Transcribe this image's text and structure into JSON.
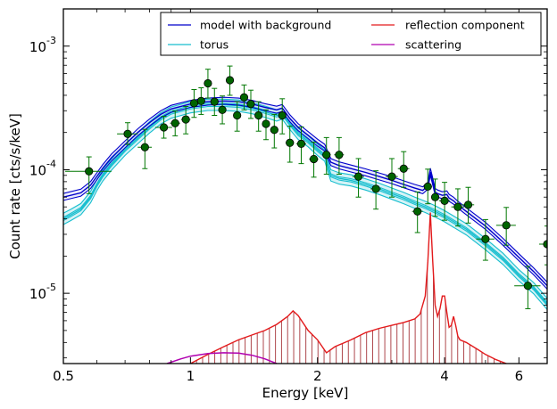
{
  "chart_data": {
    "type": "scatter",
    "xlabel": "Energy [keV]",
    "ylabel": "Count rate [cts/s/keV]",
    "xscale": "log",
    "yscale": "log",
    "xlim": [
      0.5,
      7.0
    ],
    "ylim": [
      2.7e-06,
      0.002
    ],
    "x_ticks": [
      {
        "value": 0.5,
        "label": "0.5"
      },
      {
        "value": 1,
        "label": "1"
      },
      {
        "value": 2,
        "label": "2"
      },
      {
        "value": 4,
        "label": "4"
      },
      {
        "value": 6,
        "label": "6"
      }
    ],
    "y_ticks": [
      {
        "value": 1e-05,
        "base": "10",
        "exp": "-5"
      },
      {
        "value": 0.0001,
        "base": "10",
        "exp": "-4"
      },
      {
        "value": 0.001,
        "base": "10",
        "exp": "-3"
      }
    ],
    "legend_position": "top-right",
    "legend": [
      {
        "label": "model with background",
        "color": "#0000cc"
      },
      {
        "label": "reflection component",
        "color": "#e31a1c"
      },
      {
        "label": "torus",
        "color": "#17becf"
      },
      {
        "label": "scattering",
        "color": "#b000b0"
      }
    ],
    "data_points": {
      "name": "data",
      "color": "#007700",
      "marker_color": "#006400",
      "points": [
        {
          "x": 0.575,
          "y": 9.7e-05,
          "xerr": [
            0.07,
            0.075
          ],
          "yerr": [
            3.3e-05,
            3e-05
          ]
        },
        {
          "x": 0.71,
          "y": 0.000195,
          "xerr": [
            0.04,
            0.04
          ],
          "yerr": [
            3.5e-05,
            4.5e-05
          ]
        },
        {
          "x": 0.78,
          "y": 0.000152,
          "xerr": [
            0.03,
            0.03
          ],
          "yerr": [
            5e-05,
            6e-05
          ]
        },
        {
          "x": 0.865,
          "y": 0.00022,
          "xerr": [
            0.04,
            0.04
          ],
          "yerr": [
            4e-05,
            5e-05
          ]
        },
        {
          "x": 0.92,
          "y": 0.000238,
          "xerr": [
            0.025,
            0.025
          ],
          "yerr": [
            5e-05,
            6e-05
          ]
        },
        {
          "x": 0.975,
          "y": 0.000255,
          "xerr": [
            0.025,
            0.025
          ],
          "yerr": [
            6e-05,
            7e-05
          ]
        },
        {
          "x": 1.02,
          "y": 0.000345,
          "xerr": [
            0.02,
            0.02
          ],
          "yerr": [
            8e-05,
            0.0001
          ]
        },
        {
          "x": 1.06,
          "y": 0.00036,
          "xerr": [
            0.02,
            0.02
          ],
          "yerr": [
            8e-05,
            0.0001
          ]
        },
        {
          "x": 1.1,
          "y": 0.0005,
          "xerr": [
            0.02,
            0.02
          ],
          "yerr": [
            0.00012,
            0.00015
          ]
        },
        {
          "x": 1.14,
          "y": 0.000355,
          "xerr": [
            0.02,
            0.02
          ],
          "yerr": [
            8e-05,
            0.0001
          ]
        },
        {
          "x": 1.19,
          "y": 0.000305,
          "xerr": [
            0.02,
            0.02
          ],
          "yerr": [
            7e-05,
            9e-05
          ]
        },
        {
          "x": 1.24,
          "y": 0.00053,
          "xerr": [
            0.025,
            0.025
          ],
          "yerr": [
            0.00013,
            0.00016
          ]
        },
        {
          "x": 1.29,
          "y": 0.000275,
          "xerr": [
            0.025,
            0.025
          ],
          "yerr": [
            7e-05,
            8e-05
          ]
        },
        {
          "x": 1.34,
          "y": 0.000385,
          "xerr": [
            0.025,
            0.025
          ],
          "yerr": [
            8e-05,
            0.0001
          ]
        },
        {
          "x": 1.39,
          "y": 0.00034,
          "xerr": [
            0.025,
            0.025
          ],
          "yerr": [
            8e-05,
            0.0001
          ]
        },
        {
          "x": 1.45,
          "y": 0.000275,
          "xerr": [
            0.03,
            0.03
          ],
          "yerr": [
            7e-05,
            8e-05
          ]
        },
        {
          "x": 1.51,
          "y": 0.000235,
          "xerr": [
            0.03,
            0.03
          ],
          "yerr": [
            6e-05,
            7e-05
          ]
        },
        {
          "x": 1.58,
          "y": 0.00021,
          "xerr": [
            0.035,
            0.035
          ],
          "yerr": [
            6e-05,
            7e-05
          ]
        },
        {
          "x": 1.65,
          "y": 0.000275,
          "xerr": [
            0.035,
            0.035
          ],
          "yerr": [
            8e-05,
            0.0001
          ]
        },
        {
          "x": 1.72,
          "y": 0.000165,
          "xerr": [
            0.04,
            0.04
          ],
          "yerr": [
            5e-05,
            6e-05
          ]
        },
        {
          "x": 1.83,
          "y": 0.000162,
          "xerr": [
            0.05,
            0.05
          ],
          "yerr": [
            5e-05,
            6e-05
          ]
        },
        {
          "x": 1.96,
          "y": 0.000122,
          "xerr": [
            0.05,
            0.05
          ],
          "yerr": [
            3.5e-05,
            4.5e-05
          ]
        },
        {
          "x": 2.1,
          "y": 0.000132,
          "xerr": [
            0.05,
            0.05
          ],
          "yerr": [
            4e-05,
            5e-05
          ]
        },
        {
          "x": 2.25,
          "y": 0.000132,
          "xerr": [
            0.06,
            0.06
          ],
          "yerr": [
            4e-05,
            5e-05
          ]
        },
        {
          "x": 2.5,
          "y": 8.8e-05,
          "xerr": [
            0.08,
            0.08
          ],
          "yerr": [
            2.8e-05,
            3.5e-05
          ]
        },
        {
          "x": 2.75,
          "y": 7e-05,
          "xerr": [
            0.08,
            0.08
          ],
          "yerr": [
            2.2e-05,
            2.8e-05
          ]
        },
        {
          "x": 3.0,
          "y": 8.8e-05,
          "xerr": [
            0.1,
            0.1
          ],
          "yerr": [
            2.8e-05,
            3.5e-05
          ]
        },
        {
          "x": 3.2,
          "y": 0.000102,
          "xerr": [
            0.1,
            0.1
          ],
          "yerr": [
            3e-05,
            3.8e-05
          ]
        },
        {
          "x": 3.45,
          "y": 4.6e-05,
          "xerr": [
            0.1,
            0.1
          ],
          "yerr": [
            1.5e-05,
            2e-05
          ]
        },
        {
          "x": 3.65,
          "y": 7.3e-05,
          "xerr": [
            0.08,
            0.08
          ],
          "yerr": [
            2e-05,
            2.8e-05
          ]
        },
        {
          "x": 3.8,
          "y": 6e-05,
          "xerr": [
            0.07,
            0.07
          ],
          "yerr": [
            1.8e-05,
            2.4e-05
          ]
        },
        {
          "x": 4.0,
          "y": 5.6e-05,
          "xerr": [
            0.12,
            0.12
          ],
          "yerr": [
            1.7e-05,
            2.3e-05
          ]
        },
        {
          "x": 4.3,
          "y": 5e-05,
          "xerr": [
            0.15,
            0.15
          ],
          "yerr": [
            1.5e-05,
            2e-05
          ]
        },
        {
          "x": 4.55,
          "y": 5.2e-05,
          "xerr": [
            0.15,
            0.15
          ],
          "yerr": [
            1.5e-05,
            2e-05
          ]
        },
        {
          "x": 5.0,
          "y": 2.75e-05,
          "xerr": [
            0.25,
            0.25
          ],
          "yerr": [
            9e-06,
            1.2e-05
          ]
        },
        {
          "x": 5.6,
          "y": 3.55e-05,
          "xerr": [
            0.3,
            0.3
          ],
          "yerr": [
            1.1e-05,
            1.4e-05
          ]
        },
        {
          "x": 6.3,
          "y": 1.15e-05,
          "xerr": [
            0.45,
            0.45
          ],
          "yerr": [
            4e-06,
            5e-06
          ]
        },
        {
          "x": 7.0,
          "y": 2.5e-05,
          "xerr": [
            0.3,
            0.3
          ],
          "yerr": [
            8e-06,
            1e-05
          ]
        }
      ]
    },
    "series": [
      {
        "name": "model with background",
        "color": "#0000cc",
        "band": [
          0.94,
          1.07
        ],
        "x": [
          0.5,
          0.55,
          0.58,
          0.6,
          0.62,
          0.65,
          0.7,
          0.75,
          0.8,
          0.85,
          0.9,
          1.0,
          1.1,
          1.2,
          1.3,
          1.4,
          1.5,
          1.6,
          1.65,
          1.72,
          1.8,
          1.9,
          2.0,
          2.08,
          2.15,
          2.25,
          2.4,
          2.6,
          2.8,
          3.0,
          3.2,
          3.4,
          3.55,
          3.65,
          3.7,
          3.75,
          3.8,
          3.85,
          3.95,
          4.05,
          4.1,
          4.2,
          4.3,
          4.5,
          5.0,
          5.5,
          6.0,
          6.5,
          7.0
        ],
        "y": [
          6e-05,
          6.5e-05,
          7.5e-05,
          8.8e-05,
          0.000103,
          0.000125,
          0.00016,
          0.0002,
          0.00024,
          0.00028,
          0.00031,
          0.00034,
          0.000355,
          0.00036,
          0.000355,
          0.00034,
          0.00032,
          0.000305,
          0.000315,
          0.00026,
          0.00022,
          0.00019,
          0.000165,
          0.00015,
          0.000115,
          0.000108,
          0.000102,
          9.5e-05,
          8.8e-05,
          8.2e-05,
          7.6e-05,
          7.1e-05,
          6.8e-05,
          7.4e-05,
          9.6e-05,
          8e-05,
          6.6e-05,
          6.4e-05,
          6.2e-05,
          6.3e-05,
          5.9e-05,
          5.6e-05,
          5.2e-05,
          4.6e-05,
          3.5e-05,
          2.6e-05,
          1.95e-05,
          1.5e-05,
          1.15e-05
        ]
      },
      {
        "name": "torus",
        "color": "#17becf",
        "band": [
          0.9,
          1.11
        ],
        "x": [
          0.5,
          0.52,
          0.55,
          0.58,
          0.6,
          0.62,
          0.65,
          0.7,
          0.75,
          0.8,
          0.85,
          0.9,
          1.0,
          1.1,
          1.2,
          1.3,
          1.4,
          1.5,
          1.6,
          1.65,
          1.72,
          1.8,
          1.9,
          2.0,
          2.08,
          2.15,
          2.25,
          2.4,
          2.6,
          2.8,
          3.0,
          3.2,
          3.4,
          3.6,
          3.8,
          4.0,
          4.2,
          4.5,
          5.0,
          5.5,
          6.0,
          6.5,
          7.0
        ],
        "y": [
          4e-05,
          4.3e-05,
          4.8e-05,
          6e-05,
          7.5e-05,
          9e-05,
          0.00011,
          0.000145,
          0.00018,
          0.00022,
          0.00026,
          0.00029,
          0.00032,
          0.000335,
          0.000335,
          0.00033,
          0.000315,
          0.000295,
          0.000275,
          0.000285,
          0.000235,
          0.000195,
          0.00017,
          0.000145,
          0.00013,
          9e-05,
          8.5e-05,
          8.2e-05,
          7.6e-05,
          7e-05,
          6.4e-05,
          5.9e-05,
          5.4e-05,
          5e-05,
          4.6e-05,
          4.2e-05,
          3.8e-05,
          3.3e-05,
          2.5e-05,
          1.9e-05,
          1.4e-05,
          1.1e-05,
          8.2e-06
        ]
      },
      {
        "name": "reflection component",
        "color": "#e31a1c",
        "band_fill": "#a0282d",
        "x": [
          1.0,
          1.1,
          1.2,
          1.3,
          1.4,
          1.5,
          1.6,
          1.7,
          1.75,
          1.8,
          1.9,
          2.0,
          2.1,
          2.2,
          2.4,
          2.6,
          2.8,
          3.0,
          3.2,
          3.4,
          3.5,
          3.6,
          3.65,
          3.7,
          3.75,
          3.8,
          3.85,
          3.9,
          3.95,
          4.0,
          4.05,
          4.1,
          4.15,
          4.2,
          4.25,
          4.3,
          4.35,
          4.5,
          4.8,
          5.0,
          5.3,
          5.6
        ],
        "y": [
          2.7e-06,
          3.2e-06,
          3.7e-06,
          4.2e-06,
          4.6e-06,
          5e-06,
          5.6e-06,
          6.5e-06,
          7.2e-06,
          6.6e-06,
          5e-06,
          4.2e-06,
          3.3e-06,
          3.7e-06,
          4.2e-06,
          4.8e-06,
          5.2e-06,
          5.5e-06,
          5.8e-06,
          6.2e-06,
          6.8e-06,
          9.5e-06,
          1.8e-05,
          4.5e-05,
          1.8e-05,
          8e-06,
          6.5e-06,
          7.5e-06,
          9.5e-06,
          9.5e-06,
          7e-06,
          5.3e-06,
          5.5e-06,
          6.5e-06,
          5.5e-06,
          4.5e-06,
          4.2e-06,
          4e-06,
          3.5e-06,
          3.2e-06,
          2.9e-06,
          2.7e-06
        ]
      },
      {
        "name": "scattering",
        "color": "#b000b0",
        "x": [
          0.88,
          0.95,
          1.0,
          1.1,
          1.2,
          1.3,
          1.4,
          1.5,
          1.6
        ],
        "y": [
          2.7e-06,
          2.95e-06,
          3.1e-06,
          3.25e-06,
          3.3e-06,
          3.28e-06,
          3.15e-06,
          2.95e-06,
          2.7e-06
        ]
      }
    ]
  }
}
